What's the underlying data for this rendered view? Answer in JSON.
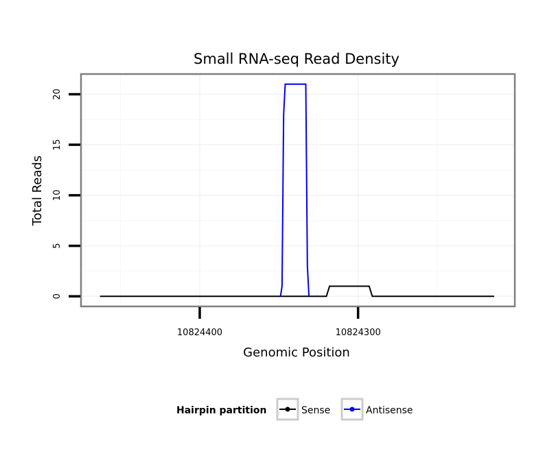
{
  "chart_data": {
    "type": "line",
    "title": "Small RNA-seq Read Density",
    "xlabel": "Genomic Position",
    "ylabel": "Total Reads",
    "x_reversed": true,
    "xlim": [
      10824475,
      10824201
    ],
    "ylim": [
      -1,
      22
    ],
    "x_ticks": [
      10824400,
      10824300
    ],
    "x_tick_labels": [
      "10824400",
      "10824300"
    ],
    "y_ticks": [
      0,
      5,
      10,
      15,
      20
    ],
    "y_tick_labels": [
      "0",
      "5",
      "10",
      "15",
      "20"
    ],
    "grid": true,
    "legend": {
      "title": "Hairpin partition",
      "position": "bottom"
    },
    "series": [
      {
        "name": "Sense",
        "color": "#000000",
        "points": [
          [
            10824463,
            0
          ],
          [
            10824320,
            0
          ],
          [
            10824318,
            1
          ],
          [
            10824293,
            1
          ],
          [
            10824291,
            0
          ],
          [
            10824214,
            0
          ]
        ]
      },
      {
        "name": "Antisense",
        "color": "#0000ee",
        "points": [
          [
            10824349,
            0
          ],
          [
            10824348,
            1
          ],
          [
            10824347,
            18
          ],
          [
            10824346,
            21
          ],
          [
            10824333,
            21
          ],
          [
            10824332,
            3
          ],
          [
            10824331,
            0
          ]
        ]
      }
    ]
  }
}
